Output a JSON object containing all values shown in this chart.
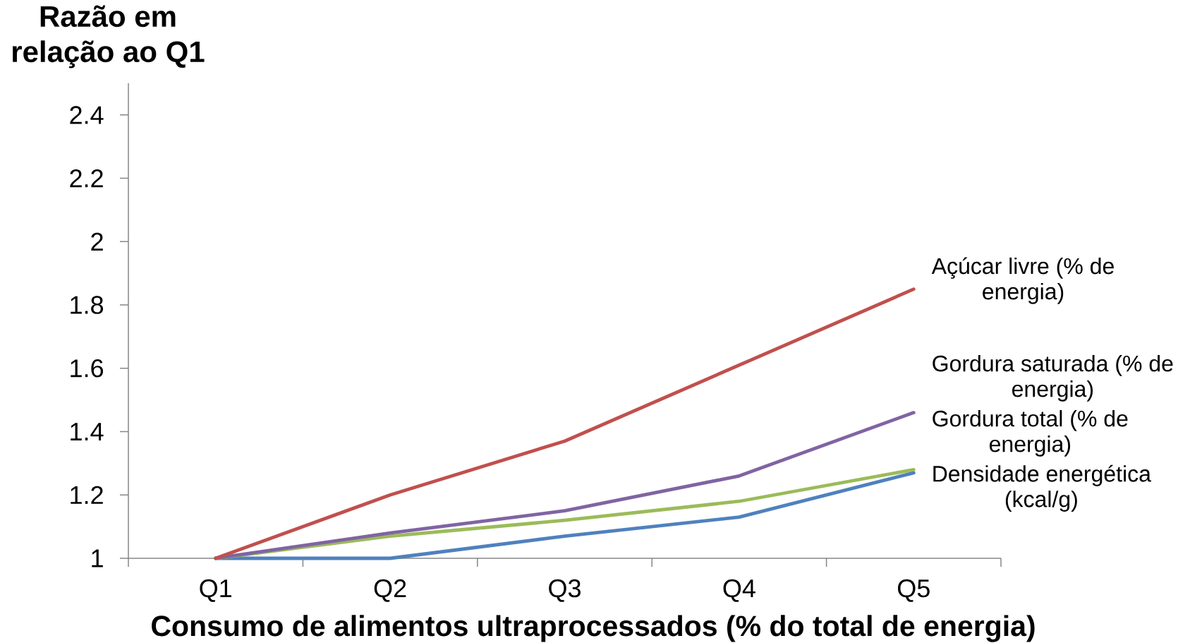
{
  "chart_data": {
    "type": "line",
    "ylabel": "Razão em relação ao Q1",
    "xlabel": "Consumo de alimentos ultraprocessados (% do total de energia)",
    "categories": [
      "Q1",
      "Q2",
      "Q3",
      "Q4",
      "Q5"
    ],
    "series": [
      {
        "name": "Densidade energética (kcal/g)",
        "color": "#4f81bd",
        "values": [
          1,
          1,
          1.07,
          1.13,
          1.27
        ]
      },
      {
        "name": "Gordura total (% de energia)",
        "color": "#9bbb59",
        "values": [
          1,
          1.07,
          1.12,
          1.18,
          1.28
        ]
      },
      {
        "name": "Gordura saturada (% de energia)",
        "color": "#8064a2",
        "values": [
          1,
          1.08,
          1.15,
          1.26,
          1.46
        ]
      },
      {
        "name": "Açúcar livre (% de energia)",
        "color": "#c0504d",
        "values": [
          1,
          1.2,
          1.37,
          1.61,
          1.85
        ]
      }
    ],
    "ylim": [
      1,
      2.5
    ],
    "yticks": [
      1,
      1.2,
      1.4,
      1.6,
      1.8,
      2,
      2.2,
      2.4
    ],
    "legend": false,
    "marker": "none",
    "line_style": "solid"
  }
}
